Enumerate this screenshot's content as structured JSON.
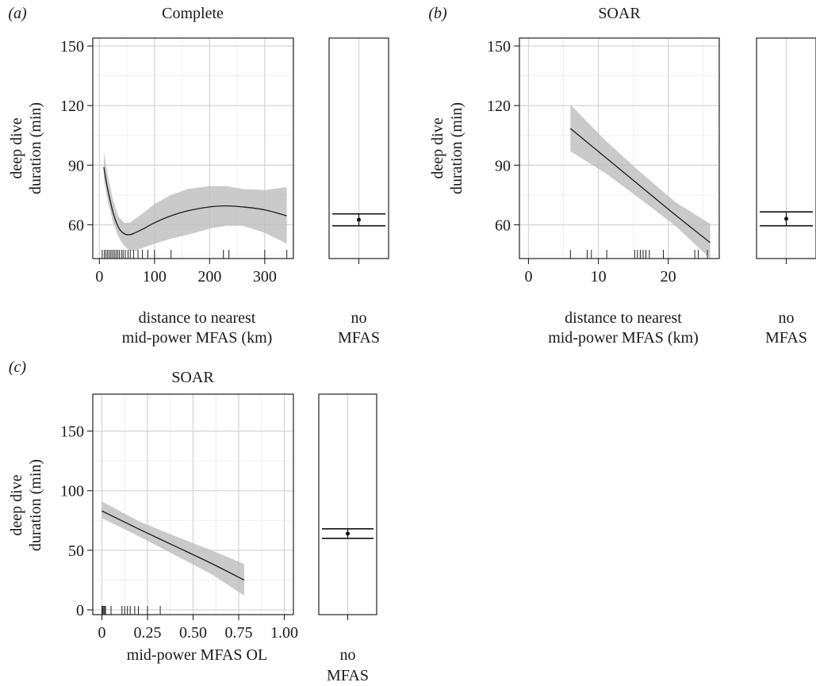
{
  "chart_data": [
    {
      "id": "a",
      "type": "line",
      "panel_label": "(a)",
      "title": "Complete",
      "xlabel": [
        "distance to nearest",
        "mid-power MFAS (km)"
      ],
      "ylabel": [
        "deep dive",
        "duration (min)"
      ],
      "xlim": [
        -12,
        352
      ],
      "ylim": [
        43,
        154
      ],
      "xticks": [
        0,
        100,
        200,
        300
      ],
      "xtick_labels": [
        "0",
        "100",
        "200",
        "300"
      ],
      "yticks": [
        60,
        90,
        120,
        150
      ],
      "ytick_labels": [
        "60",
        "90",
        "120",
        "150"
      ],
      "series": [
        {
          "x": [
            8,
            15,
            25,
            35,
            45,
            55,
            65,
            80,
            100,
            130,
            160,
            200,
            230,
            260,
            300,
            340
          ],
          "y": [
            89,
            78,
            66,
            58.5,
            55.5,
            55,
            56,
            58,
            61,
            64.5,
            67,
            69,
            69.5,
            69,
            67.5,
            64.5
          ],
          "lower": [
            83,
            72,
            61,
            53.5,
            49.5,
            47,
            47,
            48.5,
            50.5,
            53,
            55,
            58,
            59.5,
            59.5,
            56,
            50.5
          ],
          "upper": [
            97,
            85,
            72,
            64,
            61,
            61,
            63,
            66,
            70.5,
            75,
            78,
            79.5,
            79.5,
            78,
            77.5,
            79
          ]
        }
      ],
      "rug": [
        5,
        9,
        12,
        15,
        18,
        21,
        24,
        27,
        30,
        33,
        36,
        40,
        43,
        47,
        52,
        56,
        62,
        70,
        78,
        88,
        100,
        130,
        225,
        235,
        300,
        340
      ],
      "inset": {
        "xlabel": [
          "no",
          "MFAS"
        ],
        "estimate": 62.5,
        "lower": 59.5,
        "upper": 65.5
      }
    },
    {
      "id": "b",
      "type": "line",
      "panel_label": "(b)",
      "title": "SOAR",
      "xlabel": [
        "distance to nearest",
        "mid-power MFAS (km)"
      ],
      "ylabel": [
        "deep dive",
        "duration (min)"
      ],
      "xlim": [
        -1.3,
        27.3
      ],
      "ylim": [
        43,
        154
      ],
      "xticks": [
        0,
        10,
        20
      ],
      "xtick_labels": [
        "0",
        "10",
        "20"
      ],
      "yticks": [
        60,
        90,
        120,
        150
      ],
      "ytick_labels": [
        "60",
        "90",
        "120",
        "150"
      ],
      "series": [
        {
          "x": [
            6,
            11,
            16,
            21,
            26
          ],
          "y": [
            108.5,
            94,
            79.5,
            65,
            51
          ],
          "lower": [
            97,
            86,
            73,
            59.5,
            43
          ],
          "upper": [
            120.5,
            102.5,
            86.5,
            71.5,
            60.5
          ]
        }
      ],
      "rug": [
        6,
        8.4,
        9,
        11.2,
        15.2,
        15.6,
        16,
        16.4,
        16.8,
        17.3,
        19.3,
        23.8,
        24.3,
        25.6
      ],
      "inset": {
        "xlabel": [
          "no",
          "MFAS"
        ],
        "estimate": 63,
        "lower": 59.5,
        "upper": 66.5
      }
    },
    {
      "id": "c",
      "type": "line",
      "panel_label": "(c)",
      "title": "SOAR",
      "xlabel": [
        "mid-power MFAS OL"
      ],
      "ylabel": [
        "deep dive",
        "duration (min)"
      ],
      "xlim": [
        -0.05,
        1.05
      ],
      "ylim": [
        -4,
        181
      ],
      "xticks": [
        0,
        0.25,
        0.5,
        0.75,
        1.0
      ],
      "xtick_labels": [
        "0",
        "0.25",
        "0.50",
        "0.75",
        "1.00"
      ],
      "yticks": [
        0,
        50,
        100,
        150
      ],
      "ytick_labels": [
        "0",
        "50",
        "100",
        "150"
      ],
      "series": [
        {
          "x": [
            0,
            0.2,
            0.4,
            0.6,
            0.78
          ],
          "y": [
            83,
            68,
            53.5,
            39,
            25
          ],
          "lower": [
            77,
            62,
            46,
            30,
            12
          ],
          "upper": [
            91,
            74.5,
            62,
            50,
            38.5
          ]
        }
      ],
      "rug": [
        0,
        0.005,
        0.01,
        0.015,
        0.02,
        0.05,
        0.11,
        0.125,
        0.14,
        0.155,
        0.18,
        0.2,
        0.25,
        0.32
      ],
      "inset": {
        "xlabel": [
          "no",
          "MFAS"
        ],
        "estimate": 64,
        "lower": 60,
        "upper": 68
      }
    }
  ]
}
